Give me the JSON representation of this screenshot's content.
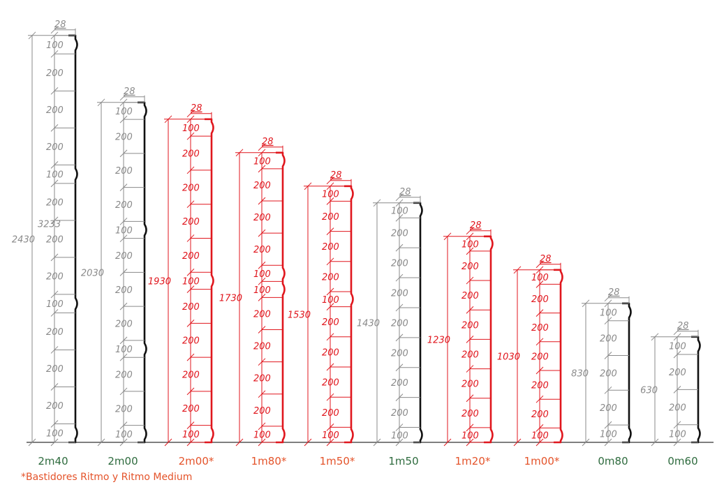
{
  "colors": {
    "black": "#111111",
    "red": "#e0161d",
    "gray": "#8a8a8a",
    "green": "#2e6b3e",
    "orange": "#e4532a",
    "ground": "#333333"
  },
  "note": "*Bastidores Ritmo y Ritmo Medium",
  "panels": [
    {
      "label": "2m40",
      "tone": "black",
      "captionTone": "green",
      "total": "2430",
      "inner": "3233",
      "top": "28",
      "segments": [
        "100",
        "200",
        "200",
        "200",
        "100",
        "200",
        "200",
        "200",
        "100",
        "200",
        "200",
        "200",
        "100"
      ]
    },
    {
      "label": "2m00",
      "tone": "black",
      "captionTone": "green",
      "total": "2030",
      "top": "28",
      "segments": [
        "100",
        "200",
        "200",
        "200",
        "100",
        "200",
        "200",
        "200",
        "100",
        "200",
        "200",
        "100"
      ]
    },
    {
      "label": "2m00*",
      "tone": "red",
      "captionTone": "orange",
      "total": "1930",
      "top": "28",
      "segments": [
        "100",
        "200",
        "200",
        "200",
        "200",
        "100",
        "200",
        "200",
        "200",
        "200",
        "100"
      ]
    },
    {
      "label": "1m80*",
      "tone": "red",
      "captionTone": "orange",
      "total": "1730",
      "top": "28",
      "segments": [
        "100",
        "200",
        "200",
        "200",
        "100",
        "100",
        "200",
        "200",
        "200",
        "200",
        "100"
      ]
    },
    {
      "label": "1m50*",
      "tone": "red",
      "captionTone": "orange",
      "total": "1530",
      "top": "28",
      "segments": [
        "100",
        "200",
        "200",
        "200",
        "100",
        "200",
        "200",
        "200",
        "200",
        "100"
      ]
    },
    {
      "label": "1m50",
      "tone": "black",
      "captionTone": "green",
      "total": "1430",
      "top": "28",
      "segments": [
        "100",
        "200",
        "200",
        "200",
        "200",
        "200",
        "200",
        "200",
        "100"
      ]
    },
    {
      "label": "1m20*",
      "tone": "red",
      "captionTone": "orange",
      "total": "1230",
      "top": "28",
      "segments": [
        "100",
        "200",
        "200",
        "200",
        "200",
        "200",
        "200",
        "100"
      ]
    },
    {
      "label": "1m00*",
      "tone": "red",
      "captionTone": "orange",
      "total": "1030",
      "top": "28",
      "segments": [
        "100",
        "200",
        "200",
        "200",
        "200",
        "200",
        "100"
      ]
    },
    {
      "label": "0m80",
      "tone": "black",
      "captionTone": "green",
      "total": "830",
      "top": "28",
      "segments": [
        "100",
        "200",
        "200",
        "200",
        "100"
      ]
    },
    {
      "label": "0m60",
      "tone": "black",
      "captionTone": "green",
      "total": "630",
      "top": "28",
      "segments": [
        "100",
        "200",
        "200",
        "100"
      ]
    }
  ]
}
